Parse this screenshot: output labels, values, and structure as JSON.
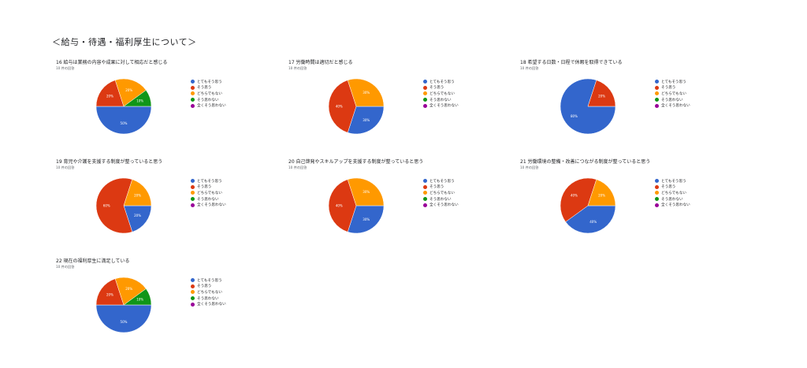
{
  "page": {
    "section_title": "＜給与・待遇・福利厚生について＞"
  },
  "legend_labels": [
    "とてもそう思う",
    "そう思う",
    "どちらでもない",
    "そう思わない",
    "全くそう思わない"
  ],
  "colors": [
    "#3366cc",
    "#dc3912",
    "#ff9900",
    "#109618",
    "#990099"
  ],
  "chart_data": [
    {
      "type": "pie",
      "title": "16 給与は業務の内容や成果に対して相応だと感じる",
      "subtitle": "10 件の回答",
      "categories": [
        "とてもそう思う",
        "そう思う",
        "どちらでもない",
        "そう思わない",
        "全くそう思わない"
      ],
      "values": [
        50,
        20,
        20,
        10,
        0
      ],
      "data_labels": [
        "50%",
        "20%",
        "20%",
        "10%",
        ""
      ]
    },
    {
      "type": "pie",
      "title": "17 労働時間は適切だと感じる",
      "subtitle": "10 件の回答",
      "categories": [
        "とてもそう思う",
        "そう思う",
        "どちらでもない",
        "そう思わない",
        "全くそう思わない"
      ],
      "values": [
        30,
        40,
        30,
        0,
        0
      ],
      "data_labels": [
        "30%",
        "40%",
        "30%",
        "",
        ""
      ]
    },
    {
      "type": "pie",
      "title": "18 希望する日数・日程で休暇を取得できている",
      "subtitle": "10 件の回答",
      "categories": [
        "とてもそう思う",
        "そう思う",
        "どちらでもない",
        "そう思わない",
        "全くそう思わない"
      ],
      "values": [
        80,
        20,
        0,
        0,
        0
      ],
      "data_labels": [
        "80%",
        "20%",
        "",
        "",
        ""
      ]
    },
    {
      "type": "pie",
      "title": "19 育児や介護を支援する制度が整っていると思う",
      "subtitle": "10 件の回答",
      "categories": [
        "とてもそう思う",
        "そう思う",
        "どちらでもない",
        "そう思わない",
        "全くそう思わない"
      ],
      "values": [
        20,
        60,
        20,
        0,
        0
      ],
      "data_labels": [
        "20%",
        "60%",
        "20%",
        "",
        ""
      ]
    },
    {
      "type": "pie",
      "title": "20 自己啓発やスキルアップを支援する制度が整っていると思う",
      "subtitle": "10 件の回答",
      "categories": [
        "とてもそう思う",
        "そう思う",
        "どちらでもない",
        "そう思わない",
        "全くそう思わない"
      ],
      "values": [
        30,
        40,
        30,
        0,
        0
      ],
      "data_labels": [
        "30%",
        "40%",
        "30%",
        "",
        ""
      ]
    },
    {
      "type": "pie",
      "title": "21 労働環境の整備・改善につながる制度が整っていると思う",
      "subtitle": "10 件の回答",
      "categories": [
        "とてもそう思う",
        "そう思う",
        "どちらでもない",
        "そう思わない",
        "全くそう思わない"
      ],
      "values": [
        40,
        40,
        20,
        0,
        0
      ],
      "data_labels": [
        "40%",
        "40%",
        "20%",
        "",
        ""
      ]
    },
    {
      "type": "pie",
      "title": "22 現在の福利厚生に満足している",
      "subtitle": "10 件の回答",
      "categories": [
        "とてもそう思う",
        "そう思う",
        "どちらでもない",
        "そう思わない",
        "全くそう思わない"
      ],
      "values": [
        50,
        20,
        20,
        10,
        0
      ],
      "data_labels": [
        "50%",
        "20%",
        "20%",
        "10%",
        ""
      ]
    }
  ]
}
